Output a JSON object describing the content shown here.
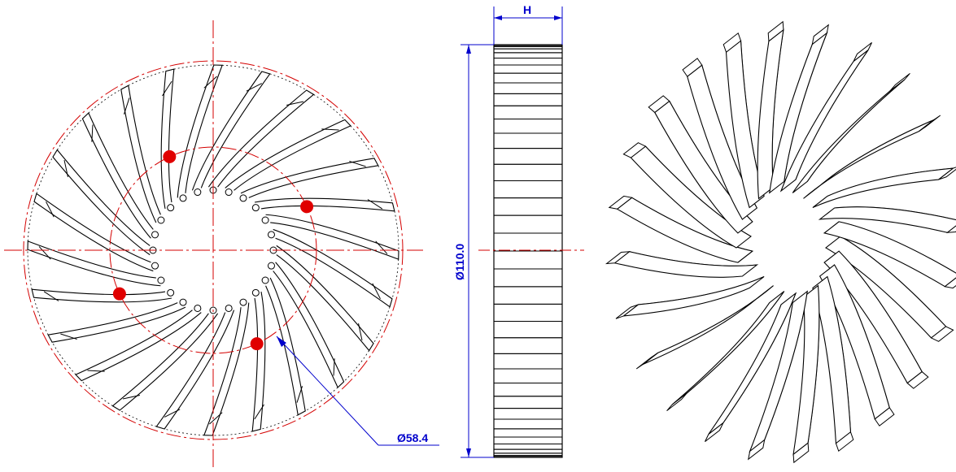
{
  "drawing": {
    "front_view": {
      "outer_diameter_label": "",
      "bolt_circle_label": "Ø58.4",
      "mounting_hole_count": 4
    },
    "side_view": {
      "height_label": "H",
      "diameter_label": "Ø110.0"
    },
    "iso_view": {
      "fin_count": 24
    },
    "colors": {
      "outline": "#000000",
      "centerline": "#d40000",
      "hole": "#e00000",
      "dimension": "#0000cc"
    }
  }
}
